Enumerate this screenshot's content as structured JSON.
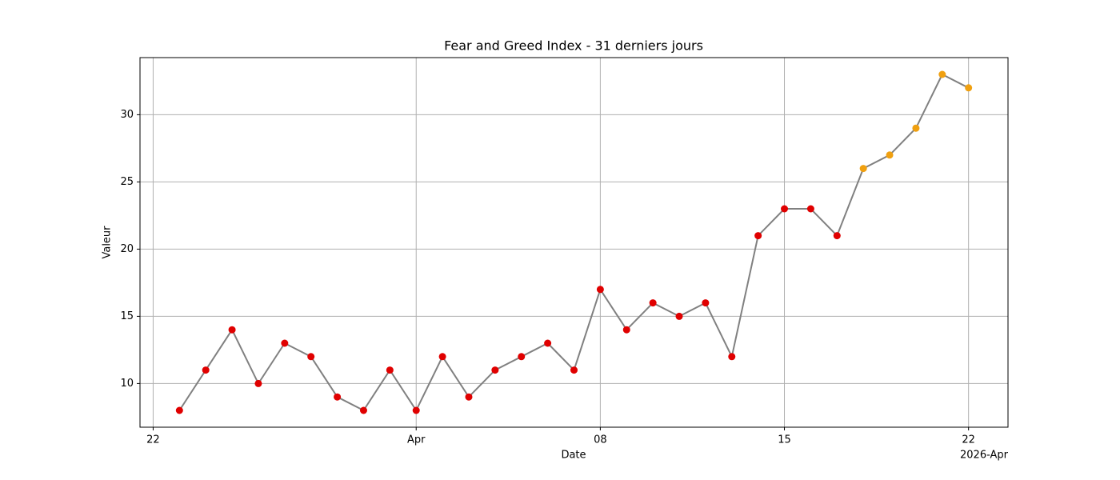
{
  "chart_data": {
    "type": "line",
    "title": "Fear and Greed Index - 31 derniers jours",
    "xlabel": "Date",
    "ylabel": "Valeur",
    "x_offset_label": "2026-Apr",
    "x": [
      "2026-03-23",
      "2026-03-24",
      "2026-03-25",
      "2026-03-26",
      "2026-03-27",
      "2026-03-28",
      "2026-03-29",
      "2026-03-30",
      "2026-03-31",
      "2026-04-01",
      "2026-04-02",
      "2026-04-03",
      "2026-04-04",
      "2026-04-05",
      "2026-04-06",
      "2026-04-07",
      "2026-04-08",
      "2026-04-09",
      "2026-04-10",
      "2026-04-11",
      "2026-04-12",
      "2026-04-13",
      "2026-04-14",
      "2026-04-15",
      "2026-04-16",
      "2026-04-17",
      "2026-04-18",
      "2026-04-19",
      "2026-04-20",
      "2026-04-21",
      "2026-04-22"
    ],
    "values": [
      8,
      11,
      14,
      10,
      13,
      12,
      9,
      8,
      11,
      8,
      12,
      9,
      11,
      12,
      13,
      11,
      17,
      14,
      16,
      15,
      16,
      12,
      21,
      23,
      23,
      21,
      26,
      27,
      29,
      33,
      32
    ],
    "line_color": "#808080",
    "point_colors": [
      "#e00000",
      "#e00000",
      "#e00000",
      "#e00000",
      "#e00000",
      "#e00000",
      "#e00000",
      "#e00000",
      "#e00000",
      "#e00000",
      "#e00000",
      "#e00000",
      "#e00000",
      "#e00000",
      "#e00000",
      "#e00000",
      "#e00000",
      "#e00000",
      "#e00000",
      "#e00000",
      "#e00000",
      "#e00000",
      "#e00000",
      "#e00000",
      "#e00000",
      "#e00000",
      "#f0a010",
      "#f0a010",
      "#f0a010",
      "#f0a010",
      "#f0a010"
    ],
    "xlim": [
      "2026-03-21T12:00Z",
      "2026-04-23T12:00Z"
    ],
    "xticks": [
      {
        "value": "2026-03-22",
        "label": "22"
      },
      {
        "value": "2026-04-01",
        "label": "Apr"
      },
      {
        "value": "2026-04-08",
        "label": "08"
      },
      {
        "value": "2026-04-15",
        "label": "15"
      },
      {
        "value": "2026-04-22",
        "label": "22"
      }
    ],
    "ylim": [
      6.75,
      34.25
    ],
    "yticks": [
      10,
      15,
      20,
      25,
      30
    ],
    "grid": true
  }
}
